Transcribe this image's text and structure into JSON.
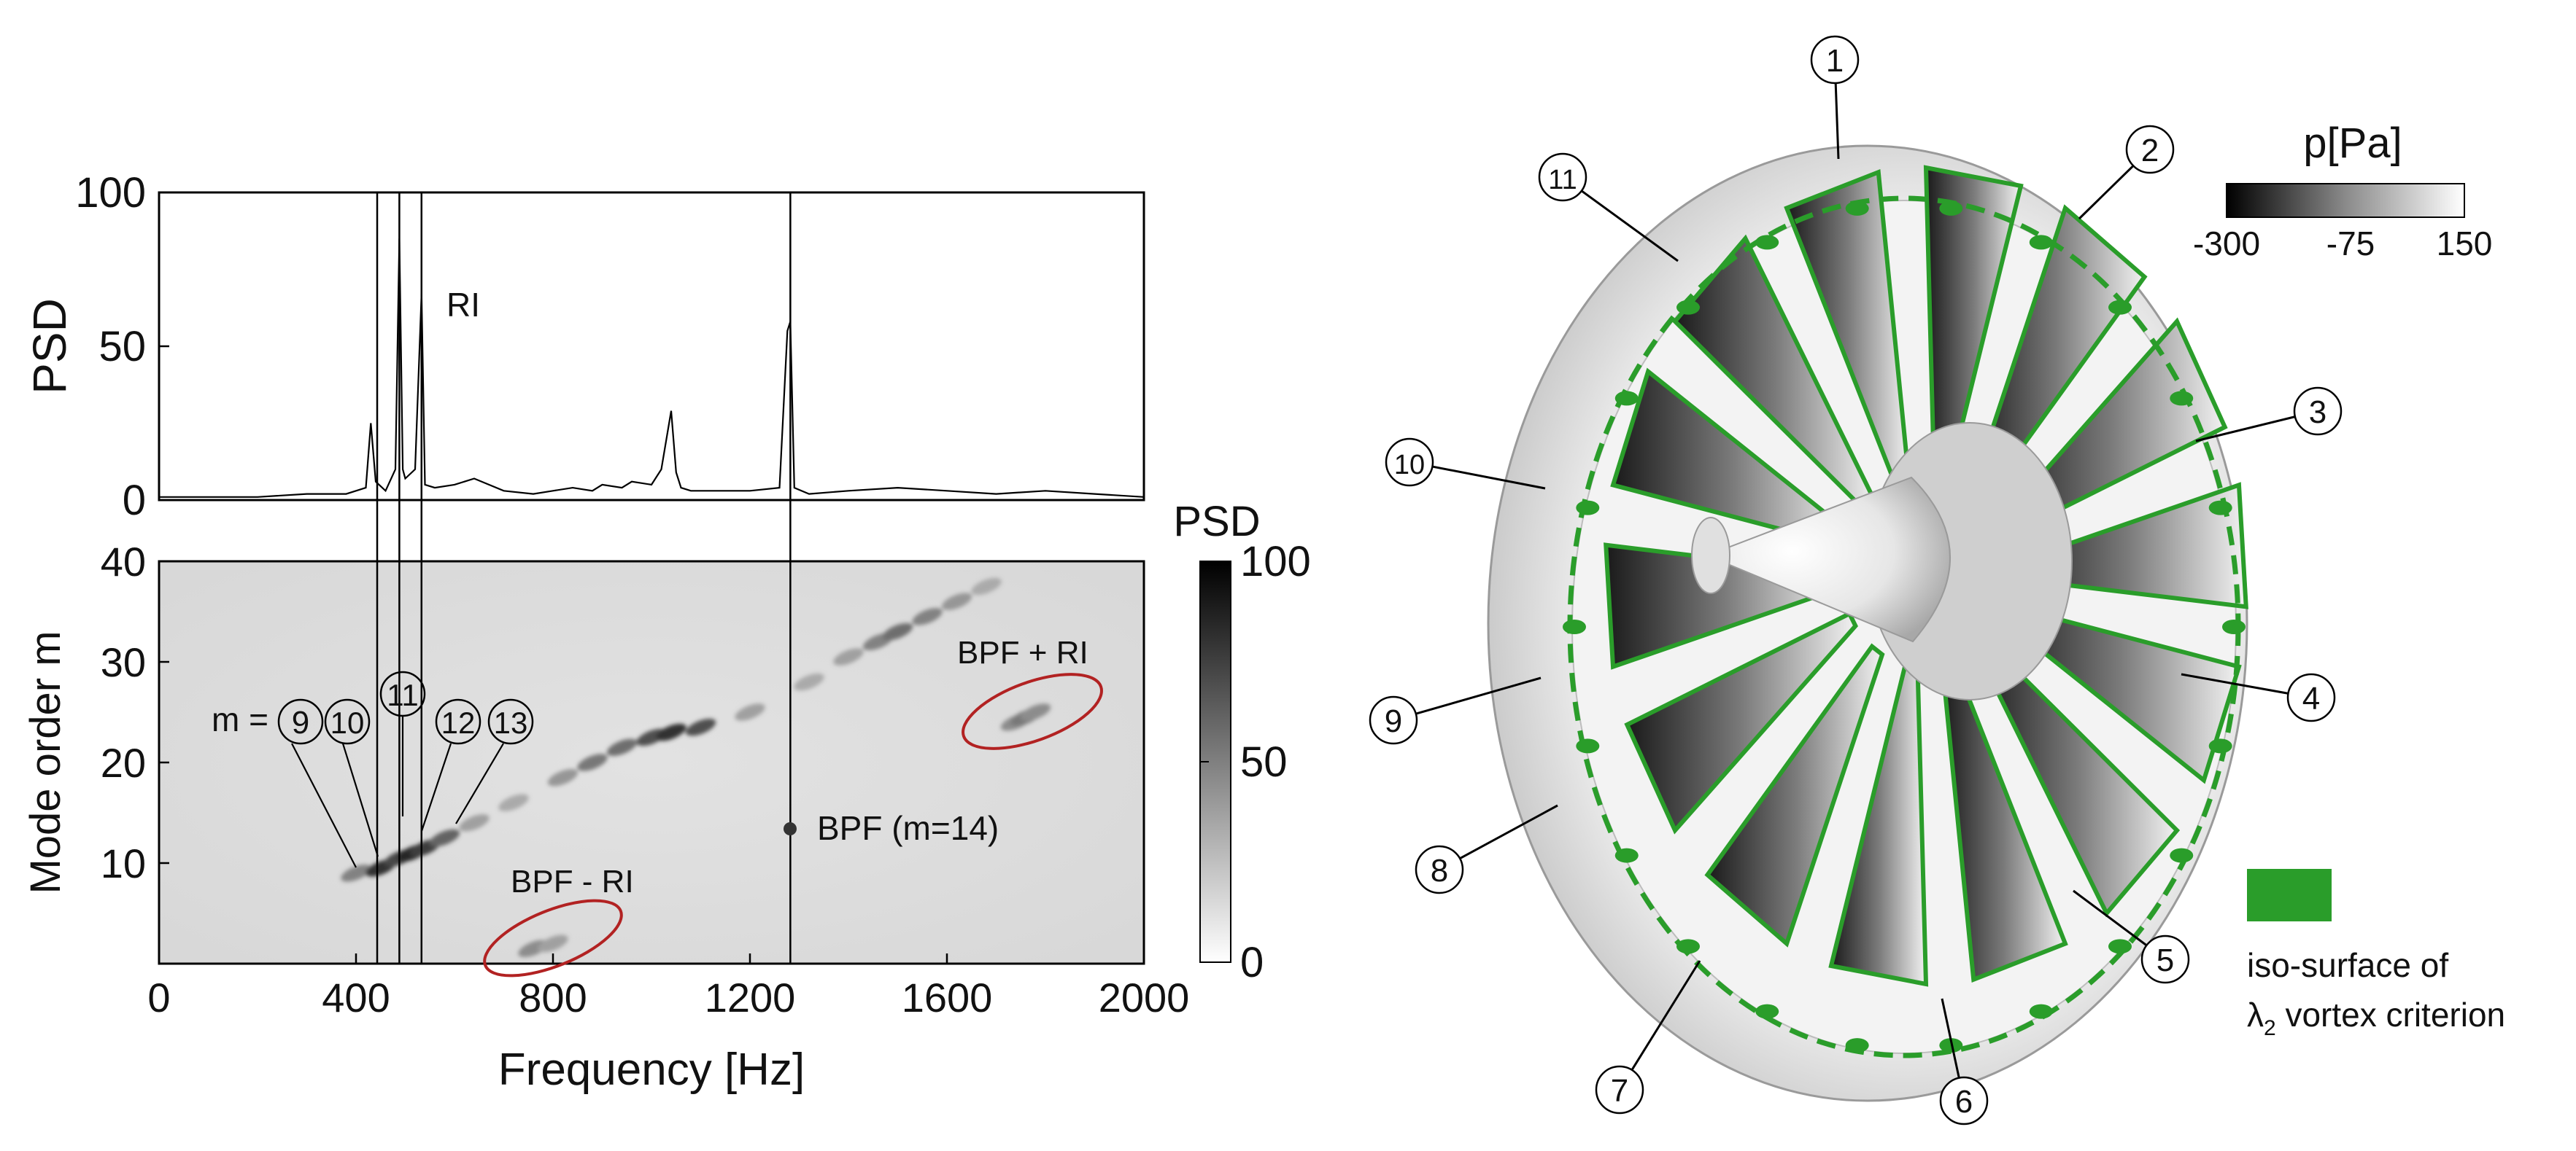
{
  "chart_data": [
    {
      "type": "line",
      "ylabel": "PSD",
      "xlim": [
        0,
        2000
      ],
      "ylim": [
        0,
        100
      ],
      "yticks": [
        "0",
        "50",
        "100"
      ],
      "grid": false,
      "annotation": "RI",
      "series": [
        {
          "x": [
            0,
            100,
            200,
            300,
            380,
            420,
            430,
            440,
            460,
            480,
            488,
            495,
            500,
            520,
            533,
            540,
            560,
            600,
            640,
            700,
            760,
            800,
            840,
            880,
            900,
            940,
            960,
            1000,
            1020,
            1040,
            1050,
            1060,
            1080,
            1100,
            1150,
            1200,
            1260,
            1276,
            1282,
            1290,
            1320,
            1400,
            1500,
            1600,
            1700,
            1800,
            1900,
            2000
          ],
          "values": [
            1,
            1,
            1,
            2,
            2,
            4,
            25,
            6,
            3,
            10,
            85,
            10,
            7,
            10,
            67,
            5,
            4,
            5,
            7,
            3,
            2,
            3,
            4,
            3,
            5,
            4,
            6,
            5,
            10,
            29,
            9,
            4,
            3,
            3,
            3,
            3,
            4,
            55,
            58,
            4,
            2,
            3,
            4,
            3,
            2,
            3,
            2,
            1
          ]
        }
      ]
    },
    {
      "type": "heatmap",
      "xlabel": "Frequency [Hz]",
      "ylabel": "Mode order  m",
      "xlim": [
        0,
        2000
      ],
      "ylim": [
        0,
        40
      ],
      "xticks": [
        "0",
        "400",
        "800",
        "1200",
        "1600",
        "2000"
      ],
      "yticks": [
        "10",
        "20",
        "30",
        "40"
      ],
      "colorbar": {
        "label": "PSD",
        "ticks": [
          "0",
          "50",
          "100"
        ],
        "range": [
          0,
          100
        ]
      },
      "ridge": [
        {
          "x": 400,
          "y": 9,
          "v": 45
        },
        {
          "x": 450,
          "y": 9.5,
          "v": 85
        },
        {
          "x": 488,
          "y": 10.5,
          "v": 75
        },
        {
          "x": 515,
          "y": 11,
          "v": 90
        },
        {
          "x": 540,
          "y": 11.5,
          "v": 80
        },
        {
          "x": 580,
          "y": 12.5,
          "v": 60
        },
        {
          "x": 640,
          "y": 14,
          "v": 30
        },
        {
          "x": 720,
          "y": 16,
          "v": 25
        },
        {
          "x": 820,
          "y": 18.5,
          "v": 35
        },
        {
          "x": 880,
          "y": 20,
          "v": 50
        },
        {
          "x": 940,
          "y": 21.5,
          "v": 55
        },
        {
          "x": 1000,
          "y": 22.5,
          "v": 70
        },
        {
          "x": 1040,
          "y": 23,
          "v": 85
        },
        {
          "x": 1100,
          "y": 23.5,
          "v": 70
        },
        {
          "x": 1200,
          "y": 25,
          "v": 30
        },
        {
          "x": 1320,
          "y": 28,
          "v": 25
        },
        {
          "x": 1400,
          "y": 30.5,
          "v": 30
        },
        {
          "x": 1460,
          "y": 32,
          "v": 45
        },
        {
          "x": 1500,
          "y": 33,
          "v": 55
        },
        {
          "x": 1560,
          "y": 34.5,
          "v": 45
        },
        {
          "x": 1620,
          "y": 36,
          "v": 35
        },
        {
          "x": 1680,
          "y": 37.5,
          "v": 25
        },
        {
          "x": 1740,
          "y": 24,
          "v": 40
        },
        {
          "x": 1760,
          "y": 24.5,
          "v": 50
        },
        {
          "x": 1780,
          "y": 25,
          "v": 40
        },
        {
          "x": 760,
          "y": 1.5,
          "v": 40
        },
        {
          "x": 800,
          "y": 2,
          "v": 30
        }
      ],
      "vertical_line_x": [
        443,
        488,
        533,
        1282
      ],
      "labels": {
        "m_prefix": "m =",
        "circled": [
          "9",
          "10",
          "11",
          "12",
          "13"
        ],
        "bpf_m14": "BPF (m=14)",
        "bpf_plus_ri": "BPF + RI",
        "bpf_minus_ri": "BPF - RI"
      }
    }
  ],
  "fan": {
    "colorbar": {
      "label": "p[Pa]",
      "ticks": [
        "-300",
        "-75",
        "150"
      ]
    },
    "blade_numbers": [
      "1",
      "2",
      "3",
      "4",
      "5",
      "6",
      "7",
      "8",
      "9",
      "10",
      "11"
    ],
    "legend": {
      "line1": "iso-surface of",
      "lambda": "λ",
      "lambda_sub": "2",
      "line2_rest": " vortex criterion"
    },
    "colors": {
      "vortex_green": "#2a9d2a",
      "ellipse_red": "#b22222"
    }
  }
}
